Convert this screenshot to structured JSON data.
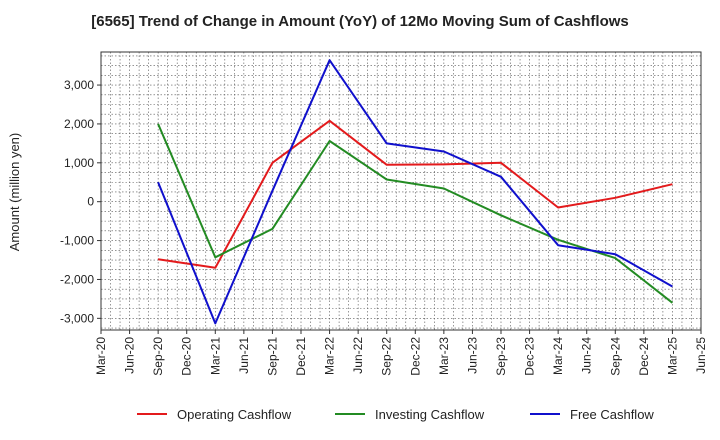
{
  "chart_data": {
    "type": "line",
    "title": "[6565]  Trend of Change in Amount (YoY) of 12Mo Moving Sum of Cashflows",
    "xlabel": "",
    "ylabel": "Amount (million yen)",
    "ylim": [
      -3300,
      3850
    ],
    "yticks": [
      3000,
      2000,
      1000,
      0,
      -1000,
      -2000,
      -3000
    ],
    "ytick_labels": [
      "3,000",
      "2,000",
      "1,000",
      "0",
      "-1,000",
      "-2,000",
      "-3,000"
    ],
    "categories": [
      "Mar-20",
      "Jun-20",
      "Sep-20",
      "Dec-20",
      "Mar-21",
      "Jun-21",
      "Sep-21",
      "Dec-21",
      "Mar-22",
      "Jun-22",
      "Sep-22",
      "Dec-22",
      "Mar-23",
      "Jun-23",
      "Sep-23",
      "Dec-23",
      "Mar-24",
      "Jun-24",
      "Sep-24",
      "Dec-24",
      "Mar-25",
      "Jun-25"
    ],
    "grid": true,
    "legend_position": "bottom",
    "series": [
      {
        "name": "Operating Cashflow",
        "color": "#e31a1c",
        "points": [
          [
            "Sep-20",
            -1480
          ],
          [
            "Mar-21",
            -1700
          ],
          [
            "Sep-21",
            1000
          ],
          [
            "Mar-22",
            2080
          ],
          [
            "Sep-22",
            950
          ],
          [
            "Mar-23",
            960
          ],
          [
            "Sep-23",
            1000
          ],
          [
            "Mar-24",
            -150
          ],
          [
            "Sep-24",
            100
          ],
          [
            "Mar-25",
            450
          ]
        ]
      },
      {
        "name": "Investing Cashflow",
        "color": "#238b23",
        "points": [
          [
            "Sep-20",
            2000
          ],
          [
            "Mar-21",
            -1430
          ],
          [
            "Sep-21",
            -700
          ],
          [
            "Mar-22",
            1560
          ],
          [
            "Sep-22",
            570
          ],
          [
            "Mar-23",
            340
          ],
          [
            "Sep-23",
            -350
          ],
          [
            "Mar-24",
            -980
          ],
          [
            "Sep-24",
            -1450
          ],
          [
            "Mar-25",
            -2600
          ]
        ]
      },
      {
        "name": "Free Cashflow",
        "color": "#1010cc",
        "points": [
          [
            "Sep-20",
            500
          ],
          [
            "Mar-21",
            -3130
          ],
          [
            "Sep-21",
            280
          ],
          [
            "Mar-22",
            3640
          ],
          [
            "Sep-22",
            1500
          ],
          [
            "Mar-23",
            1290
          ],
          [
            "Sep-23",
            640
          ],
          [
            "Mar-24",
            -1120
          ],
          [
            "Sep-24",
            -1350
          ],
          [
            "Mar-25",
            -2180
          ]
        ]
      }
    ]
  }
}
